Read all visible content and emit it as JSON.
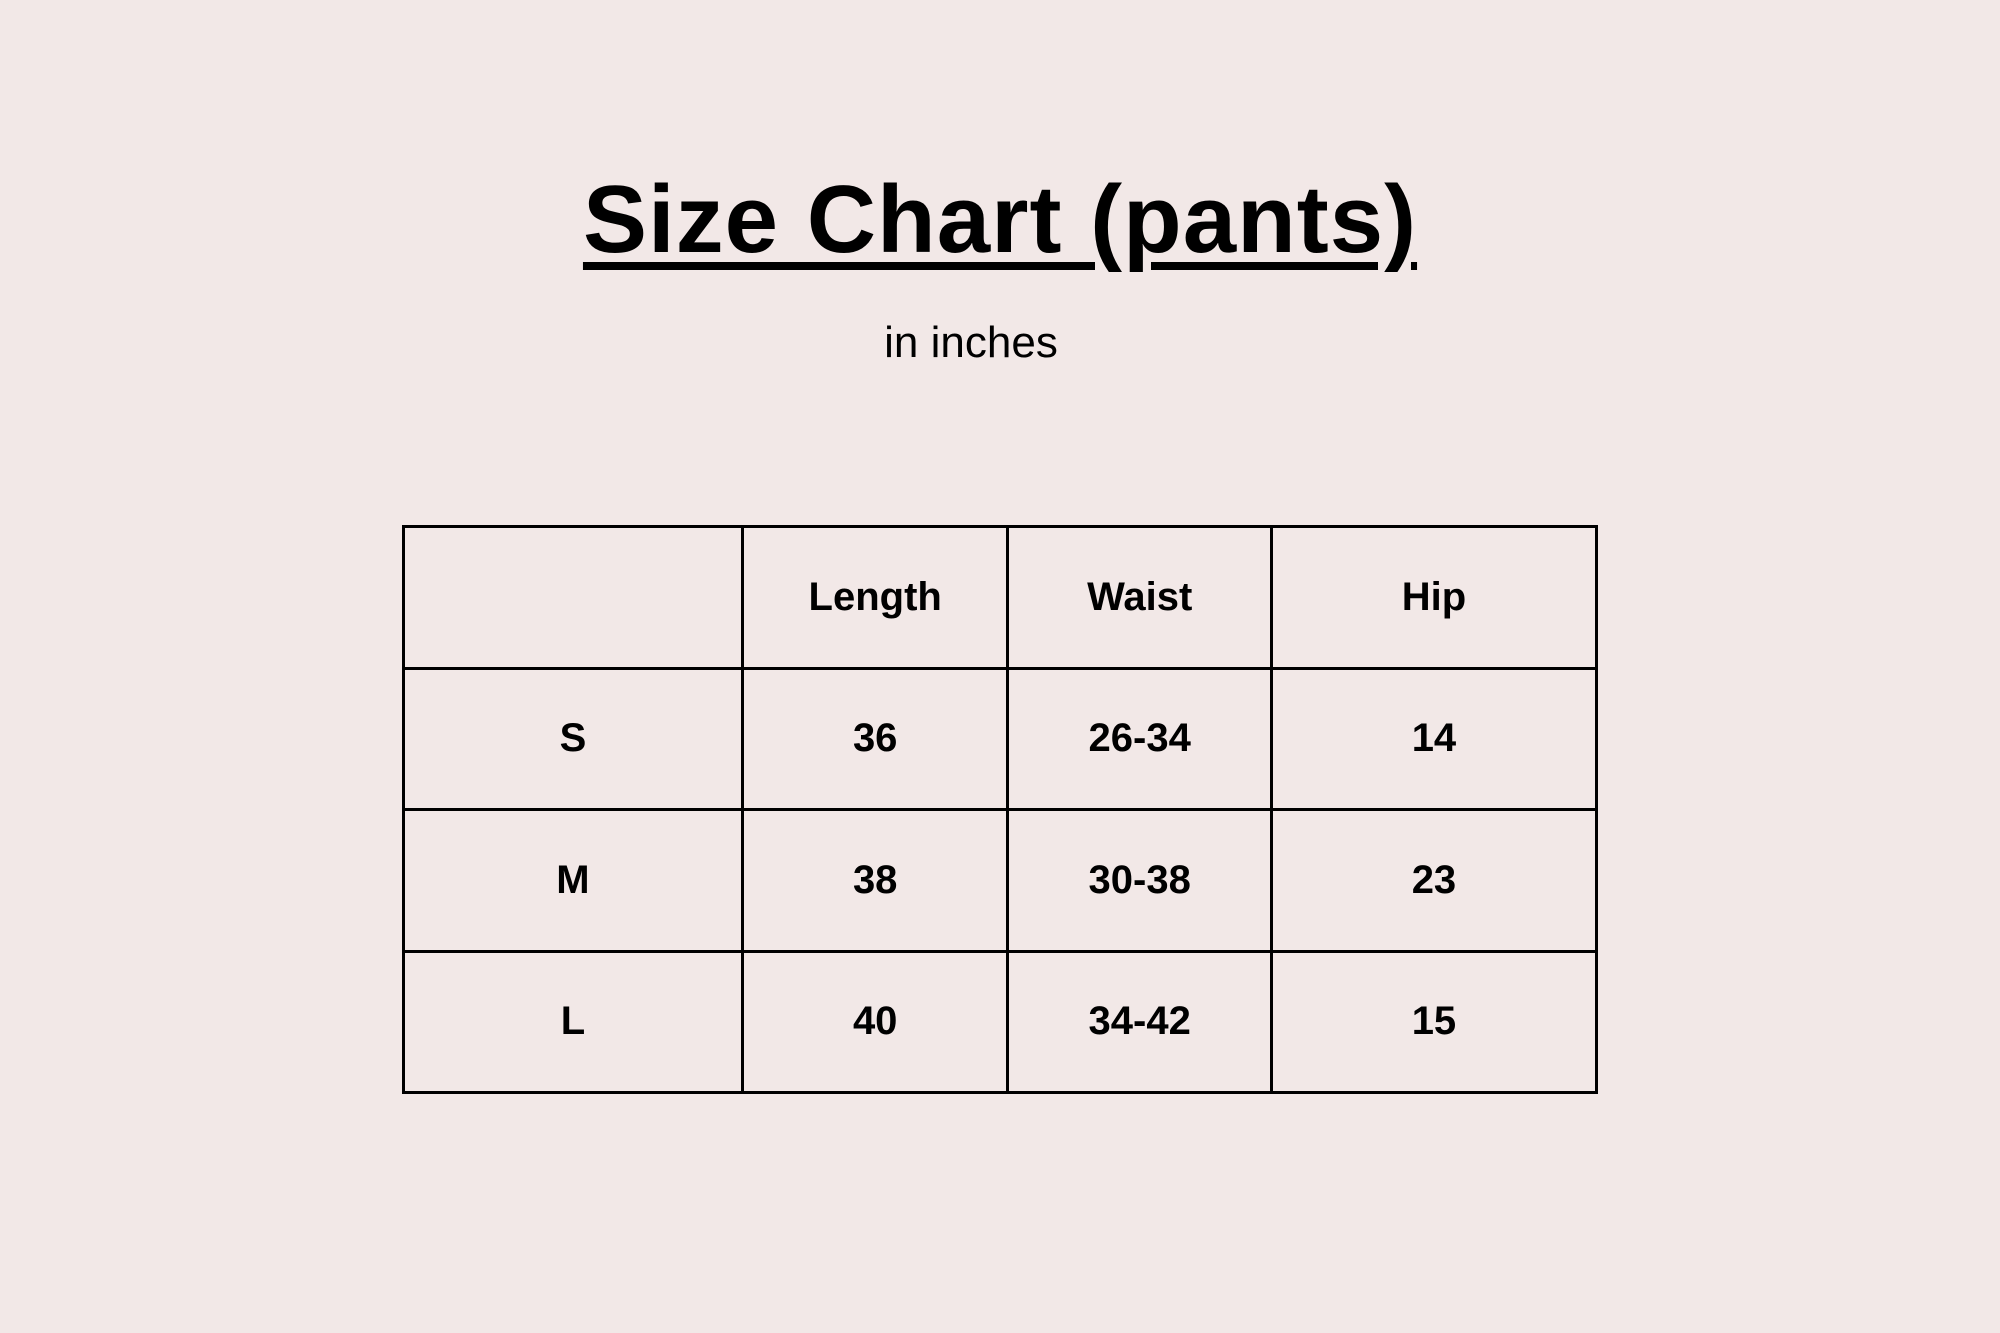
{
  "title": "Size Chart (pants)",
  "subtitle": "in inches",
  "table": {
    "headers": [
      "",
      "Length",
      "Waist",
      "Hip"
    ],
    "rows": [
      [
        "S",
        "36",
        "26-34",
        "14"
      ],
      [
        "M",
        "38",
        "30-38",
        "23"
      ],
      [
        "L",
        "40",
        "34-42",
        "15"
      ]
    ]
  }
}
